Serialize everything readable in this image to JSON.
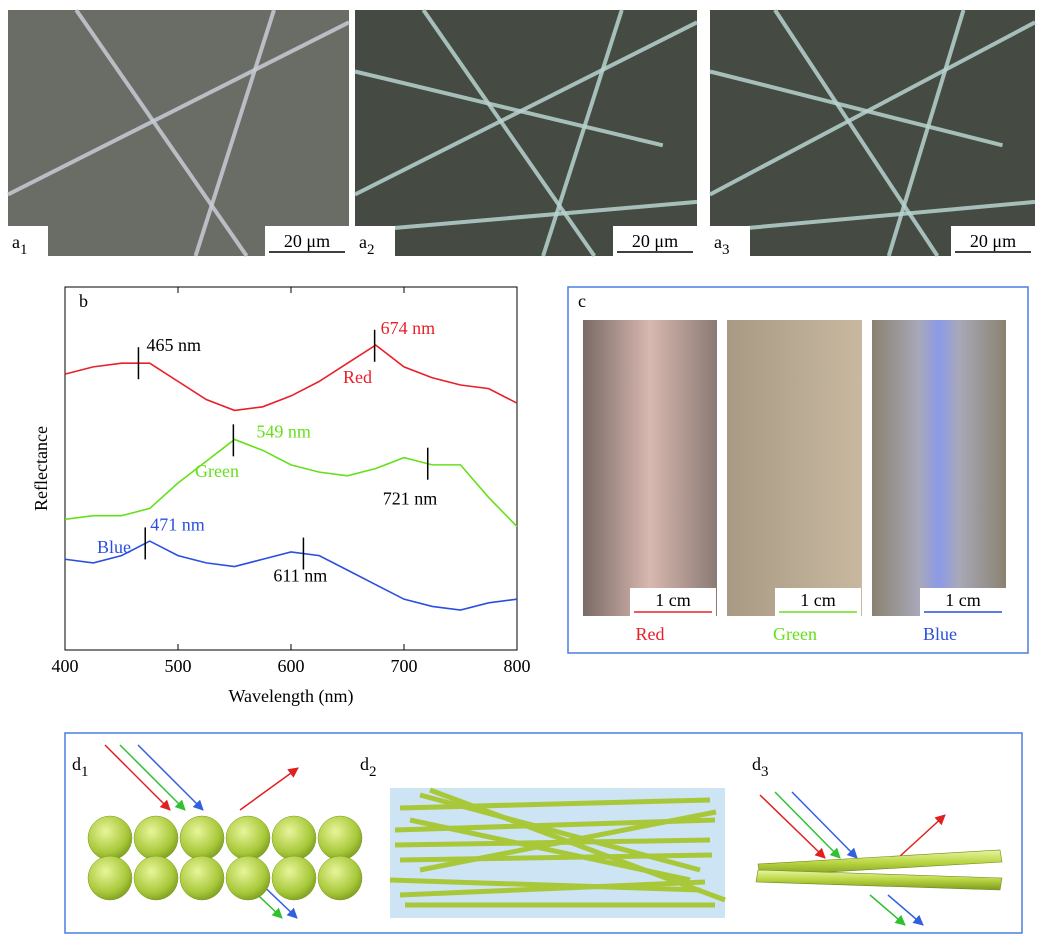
{
  "photos": [
    {
      "label": "a",
      "sub": "1",
      "scale": "20 μm"
    },
    {
      "label": "a",
      "sub": "2",
      "scale": "20 μm"
    },
    {
      "label": "a",
      "sub": "3",
      "scale": "20 μm"
    }
  ],
  "chart_data": {
    "type": "line",
    "panel": "b",
    "x_label": "Wavelength (nm)",
    "y_label": "Reflectance",
    "x": [
      400,
      425,
      450,
      475,
      500,
      525,
      550,
      575,
      600,
      625,
      650,
      675,
      700,
      725,
      750,
      775,
      800
    ],
    "xlim": [
      400,
      800
    ],
    "xticks": [
      400,
      500,
      600,
      700,
      800
    ],
    "ylim": [
      0,
      10
    ],
    "series": [
      {
        "name": "Red",
        "color": "#e8202a",
        "values": [
          7.6,
          7.8,
          7.9,
          7.9,
          7.4,
          6.9,
          6.6,
          6.7,
          7.0,
          7.4,
          7.9,
          8.4,
          7.8,
          7.5,
          7.3,
          7.2,
          6.8
        ],
        "peaks": [
          {
            "x": 465,
            "label": "465 nm",
            "color": "#000000"
          },
          {
            "x": 674,
            "label": "674 nm",
            "color": "#e8202a"
          }
        ]
      },
      {
        "name": "Green",
        "color": "#66e01a",
        "values": [
          3.6,
          3.7,
          3.7,
          3.9,
          4.6,
          5.2,
          5.8,
          5.5,
          5.1,
          4.9,
          4.8,
          5.0,
          5.3,
          5.1,
          5.1,
          4.2,
          3.4
        ],
        "peaks": [
          {
            "x": 549,
            "label": "549 nm",
            "color": "#66e01a"
          },
          {
            "x": 721,
            "label": "721 nm",
            "color": "#000000"
          }
        ]
      },
      {
        "name": "Blue",
        "color": "#2a4fe0",
        "values": [
          2.5,
          2.4,
          2.6,
          3.0,
          2.6,
          2.4,
          2.3,
          2.5,
          2.7,
          2.6,
          2.2,
          1.8,
          1.4,
          1.2,
          1.1,
          1.3,
          1.4
        ],
        "peaks": [
          {
            "x": 471,
            "label": "471 nm",
            "color": "#2a4fe0"
          },
          {
            "x": 611,
            "label": "611 nm",
            "color": "#000000"
          }
        ]
      }
    ]
  },
  "panel_c": {
    "label": "c",
    "scale": "1 cm",
    "samples": [
      {
        "name": "Red",
        "color": "#e8202a"
      },
      {
        "name": "Green",
        "color": "#66e01a"
      },
      {
        "name": "Blue",
        "color": "#2a4fe0"
      }
    ]
  },
  "panel_d": [
    {
      "label": "d",
      "sub": "1"
    },
    {
      "label": "d",
      "sub": "2"
    },
    {
      "label": "d",
      "sub": "3"
    }
  ]
}
